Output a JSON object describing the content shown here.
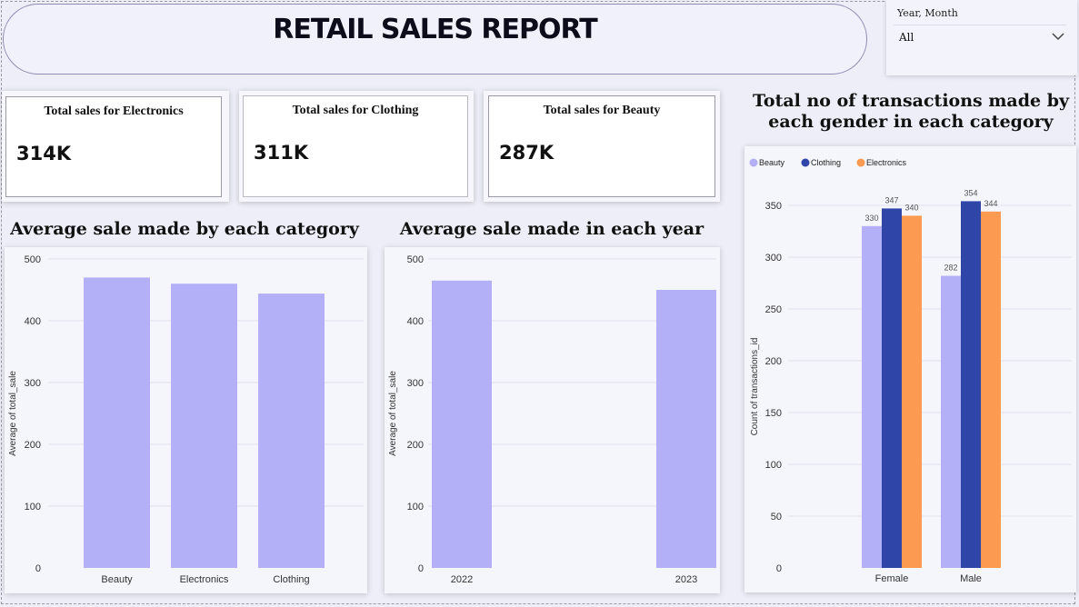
{
  "report": {
    "title": "RETAIL SALES REPORT"
  },
  "slicer": {
    "label": "Year, Month",
    "value": "All",
    "icon": "chevron-down-icon"
  },
  "cards": [
    {
      "title": "Total sales for Electronics",
      "value": "314K"
    },
    {
      "title": "Total sales for Clothing",
      "value": "311K"
    },
    {
      "title": "Total sales for Beauty",
      "value": "287K"
    }
  ],
  "colors": {
    "bar": "#b4b0f8",
    "beauty": "#b4b0f8",
    "clothing": "#2f46a8",
    "electronics": "#fc9a52",
    "grid": "#e1e1ee"
  },
  "chart_data": [
    {
      "type": "bar",
      "title": "Average sale made by each category",
      "categories": [
        "Beauty",
        "Electronics",
        "Clothing"
      ],
      "values": [
        470,
        460,
        444
      ],
      "xlabel": "",
      "ylabel": "Average of total_sale",
      "ylim": [
        0,
        500
      ],
      "yticks": [
        0,
        100,
        200,
        300,
        400,
        500
      ],
      "grid": true
    },
    {
      "type": "bar",
      "title": "Average sale made in each year",
      "categories": [
        "2022",
        "2023"
      ],
      "values": [
        465,
        450
      ],
      "xlabel": "",
      "ylabel": "Average of total_sale",
      "ylim": [
        0,
        500
      ],
      "yticks": [
        0,
        100,
        200,
        300,
        400,
        500
      ],
      "grid": true
    },
    {
      "type": "bar",
      "title": "Total no of transactions made by each gender in each category",
      "categories": [
        "Female",
        "Male"
      ],
      "series": [
        {
          "name": "Beauty",
          "values": [
            330,
            282
          ]
        },
        {
          "name": "Clothing",
          "values": [
            347,
            354
          ]
        },
        {
          "name": "Electronics",
          "values": [
            340,
            344
          ]
        }
      ],
      "xlabel": "",
      "ylabel": "Count of transactions_id",
      "ylim": [
        0,
        350
      ],
      "yticks": [
        0,
        50,
        100,
        150,
        200,
        250,
        300,
        350
      ],
      "legend": "top-left",
      "grid": true
    }
  ]
}
